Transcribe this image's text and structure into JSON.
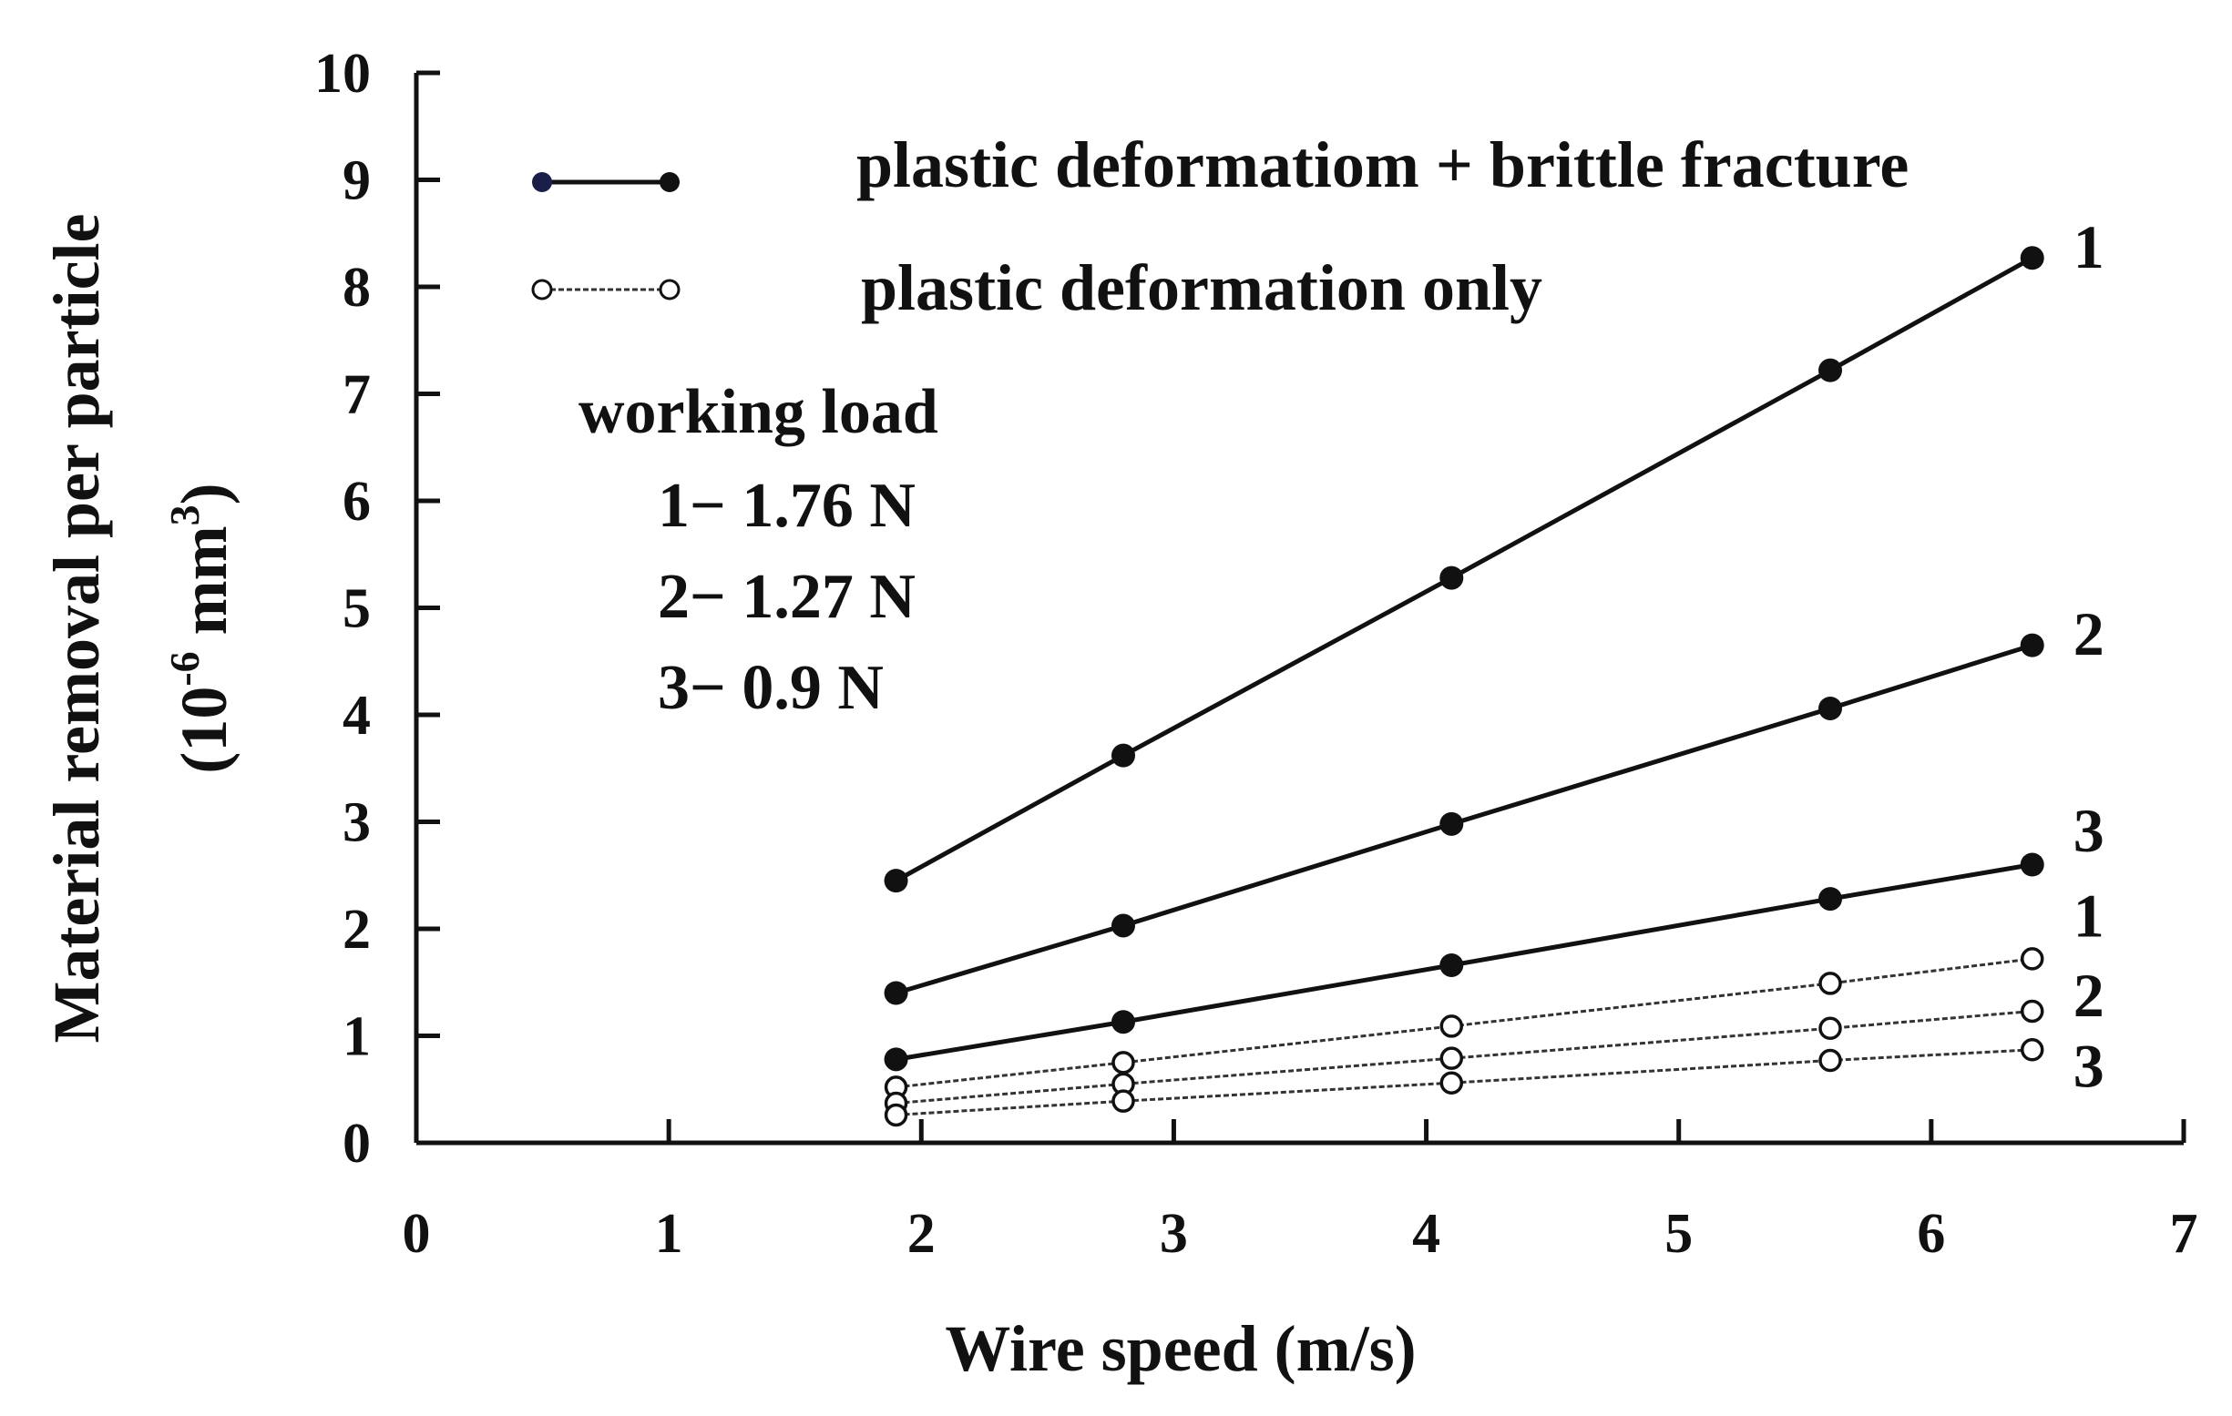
{
  "chart_data": {
    "type": "line",
    "xlabel": "Wire speed (m/s)",
    "ylabel_line1": "Material removal per particle",
    "ylabel_line2_prefix": "(10",
    "ylabel_line2_exp": "-6",
    "ylabel_line2_unit": " mm",
    "ylabel_line2_unit_exp": "3",
    "ylabel_line2_suffix": ")",
    "xlim": [
      0,
      7
    ],
    "ylim": [
      0,
      10
    ],
    "xticks": [
      0,
      1,
      2,
      3,
      4,
      5,
      6,
      7
    ],
    "yticks": [
      0,
      1,
      2,
      3,
      4,
      5,
      6,
      7,
      8,
      9,
      10
    ],
    "grid": false,
    "x": [
      1.9,
      2.8,
      4.1,
      5.6,
      6.4
    ],
    "legend": {
      "position": "top-left",
      "entries": [
        {
          "label": "plastic deformatiom + brittle fracture",
          "style": "filled"
        },
        {
          "label": "plastic deformation only",
          "style": "open"
        }
      ]
    },
    "working_load": {
      "title": "working load",
      "items": [
        "1− 1.76 N",
        "2− 1.27 N",
        "3− 0.9 N"
      ]
    },
    "series": [
      {
        "label": "1",
        "style": "filled",
        "values": [
          2.45,
          3.62,
          5.28,
          7.22,
          8.27
        ]
      },
      {
        "label": "2",
        "style": "filled",
        "values": [
          1.4,
          2.03,
          2.98,
          4.06,
          4.65
        ]
      },
      {
        "label": "3",
        "style": "filled",
        "values": [
          0.78,
          1.13,
          1.66,
          2.28,
          2.6
        ]
      },
      {
        "label": "1",
        "style": "open",
        "values": [
          0.52,
          0.75,
          1.09,
          1.49,
          1.72
        ]
      },
      {
        "label": "2",
        "style": "open",
        "values": [
          0.37,
          0.55,
          0.79,
          1.07,
          1.23
        ]
      },
      {
        "label": "3",
        "style": "open",
        "values": [
          0.26,
          0.39,
          0.56,
          0.77,
          0.87
        ]
      }
    ],
    "colors": {
      "axis": "#111111",
      "filled_marker": "#111111",
      "open_marker_fill": "#ffffff",
      "legend_first_marker": "#1a1f4a"
    }
  }
}
